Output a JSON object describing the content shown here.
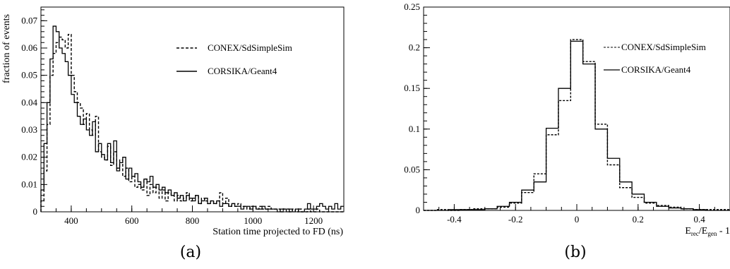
{
  "chart_data": [
    {
      "type": "line",
      "panel_label": "(a)",
      "xlabel": "Station time projected to FD (ns)",
      "ylabel": "fraction of events",
      "xlim": [
        300,
        1300
      ],
      "ylim": [
        0,
        0.075
      ],
      "xticks": [
        400,
        600,
        800,
        1000,
        1200
      ],
      "yticks": [
        0,
        0.01,
        0.02,
        0.03,
        0.04,
        0.05,
        0.06,
        0.07
      ],
      "ytick_labels": [
        "0",
        "0.01",
        "0.02",
        "0.03",
        "0.04",
        "0.05",
        "0.06",
        "0.07"
      ],
      "legend_position": "top-right",
      "bin_width": 10,
      "bin_start": 300,
      "series": [
        {
          "name": "CONEX/SdSimpleSim",
          "style": "dashed",
          "values": [
            0.004,
            0.015,
            0.032,
            0.05,
            0.058,
            0.062,
            0.064,
            0.063,
            0.06,
            0.065,
            0.05,
            0.044,
            0.04,
            0.038,
            0.032,
            0.036,
            0.03,
            0.028,
            0.035,
            0.022,
            0.02,
            0.019,
            0.024,
            0.017,
            0.022,
            0.016,
            0.019,
            0.013,
            0.016,
            0.011,
            0.013,
            0.009,
            0.01,
            0.008,
            0.012,
            0.006,
            0.01,
            0.007,
            0.009,
            0.005,
            0.008,
            0.004,
            0.007,
            0.006,
            0.004,
            0.006,
            0.004,
            0.005,
            0.007,
            0.004,
            0.005,
            0.006,
            0.003,
            0.005,
            0.004,
            0.003,
            0.004,
            0.003,
            0.004,
            0.007,
            0.003,
            0.005,
            0.002,
            0.003,
            0.002,
            0.003,
            0.002,
            0.002,
            0.001,
            0.002,
            0.002,
            0.001,
            0.002,
            0.001,
            0.001,
            0.002,
            0.001,
            0.001,
            0.001,
            0,
            0.001,
            0.001,
            0,
            0.001,
            0,
            0.001,
            0,
            0,
            0.001,
            0,
            0,
            0.001,
            0,
            0,
            0,
            0,
            0,
            0,
            0,
            0
          ]
        },
        {
          "name": "CORSIKA/Geant4",
          "style": "solid",
          "values": [
            0.008,
            0.025,
            0.04,
            0.056,
            0.068,
            0.066,
            0.06,
            0.058,
            0.055,
            0.05,
            0.043,
            0.04,
            0.035,
            0.032,
            0.034,
            0.03,
            0.028,
            0.033,
            0.022,
            0.025,
            0.021,
            0.019,
            0.025,
            0.018,
            0.026,
            0.015,
            0.018,
            0.02,
            0.012,
            0.016,
            0.013,
            0.014,
            0.011,
            0.009,
            0.012,
            0.011,
            0.013,
            0.009,
            0.01,
            0.008,
            0.009,
            0.007,
            0.008,
            0.006,
            0.007,
            0.005,
            0.006,
            0.004,
            0.006,
            0.005,
            0.004,
            0.006,
            0.003,
            0.004,
            0.005,
            0.003,
            0.004,
            0.003,
            0.004,
            0.002,
            0.003,
            0.003,
            0.002,
            0.003,
            0.002,
            0.002,
            0.001,
            0.002,
            0.002,
            0.001,
            0.002,
            0.001,
            0.001,
            0.002,
            0.001,
            0.001,
            0.001,
            0.001,
            0,
            0.001,
            0.001,
            0,
            0.001,
            0,
            0.001,
            0,
            0,
            0.001,
            0.003,
            0.001,
            0.001,
            0.002,
            0.003,
            0.002,
            0.001,
            0.002,
            0.001,
            0.003,
            0.001,
            0.002
          ]
        }
      ]
    },
    {
      "type": "line",
      "panel_label": "(b)",
      "xlabel": "E",
      "xlabel_sub1": "rec",
      "xlabel_mid": "/E",
      "xlabel_sub2": "gen",
      "xlabel_tail": " - 1",
      "ylabel": "",
      "xlim": [
        -0.5,
        0.5
      ],
      "ylim": [
        0,
        0.25
      ],
      "xticks": [
        -0.4,
        -0.2,
        0,
        0.2,
        0.4
      ],
      "xtick_labels": [
        "-0.4",
        "-0.2",
        "0",
        "0.2",
        "0.4"
      ],
      "yticks": [
        0,
        0.05,
        0.1,
        0.15,
        0.2,
        0.25
      ],
      "ytick_labels": [
        "0",
        "0.05",
        "0.1",
        "0.15",
        "0.2",
        "0.25"
      ],
      "legend_position": "top-right",
      "bin_width": 0.04,
      "bin_start": -0.5,
      "series": [
        {
          "name": "CONEX/SdSimpleSim",
          "style": "dashed",
          "values": [
            0,
            0.001,
            0,
            0.001,
            0.002,
            0.002,
            0.004,
            0.009,
            0.022,
            0.045,
            0.093,
            0.135,
            0.21,
            0.183,
            0.106,
            0.056,
            0.028,
            0.016,
            0.009,
            0.006,
            0.004,
            0.002,
            0.001,
            0.001,
            0.001
          ]
        },
        {
          "name": "CORSIKA/Geant4",
          "style": "solid",
          "values": [
            0,
            0,
            0.001,
            0.001,
            0.001,
            0.002,
            0.005,
            0.01,
            0.025,
            0.035,
            0.101,
            0.15,
            0.208,
            0.18,
            0.1,
            0.064,
            0.035,
            0.02,
            0.01,
            0.005,
            0.003,
            0.002,
            0.001,
            0,
            0
          ]
        }
      ]
    }
  ]
}
